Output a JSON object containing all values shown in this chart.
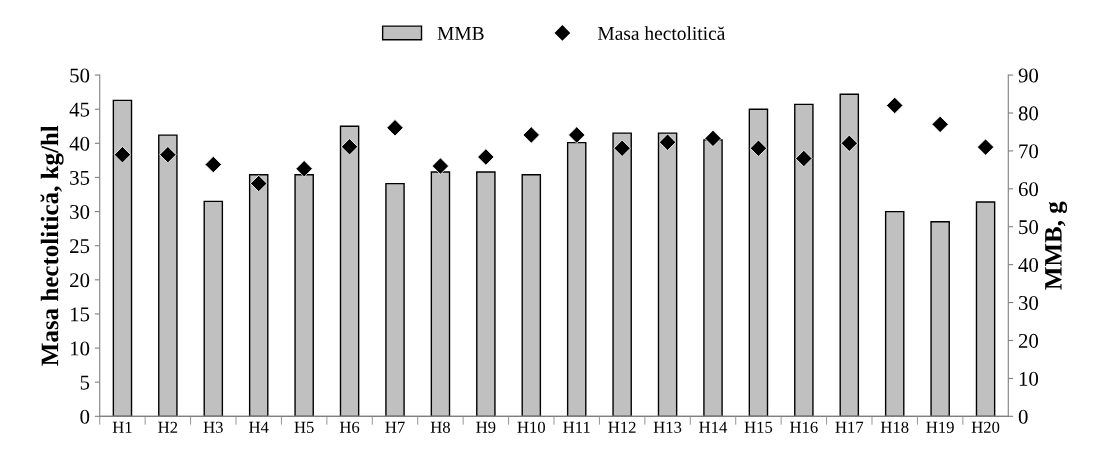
{
  "chart_data": {
    "type": "bar",
    "categories": [
      "H1",
      "H2",
      "H3",
      "H4",
      "H5",
      "H6",
      "H7",
      "H8",
      "H9",
      "H10",
      "H11",
      "H12",
      "H13",
      "H14",
      "H15",
      "H16",
      "H17",
      "H18",
      "H19",
      "H20"
    ],
    "series": [
      {
        "name": "MMB",
        "color": "#c0c0c0",
        "values": [
          46.3,
          41.2,
          31.5,
          35.4,
          35.4,
          42.5,
          34.1,
          35.8,
          35.8,
          35.4,
          40.1,
          41.5,
          41.5,
          40.5,
          45.0,
          45.7,
          47.2,
          30.0,
          28.5,
          31.4
        ]
      },
      {
        "name": "Masa hectolitică",
        "type": "scatter",
        "axis": "y2",
        "color": "#000000",
        "marker": "diamond",
        "values": [
          69,
          69,
          66.4,
          61.4,
          65.3,
          71.1,
          76.1,
          66,
          68.4,
          74.2,
          74.2,
          70.7,
          72.3,
          73.3,
          70.7,
          68,
          72,
          82,
          77,
          71
        ]
      }
    ],
    "ylabel": "Masa hectolitică, kg/hl",
    "y2label": "MMB, g",
    "ylim": [
      0,
      50
    ],
    "yticks": [
      0,
      5,
      10,
      15,
      20,
      25,
      30,
      35,
      40,
      45,
      50
    ],
    "y2lim": [
      0,
      90
    ],
    "y2ticks": [
      0,
      10,
      20,
      30,
      40,
      50,
      60,
      70,
      80,
      90
    ],
    "legend": "top",
    "grid": false
  }
}
